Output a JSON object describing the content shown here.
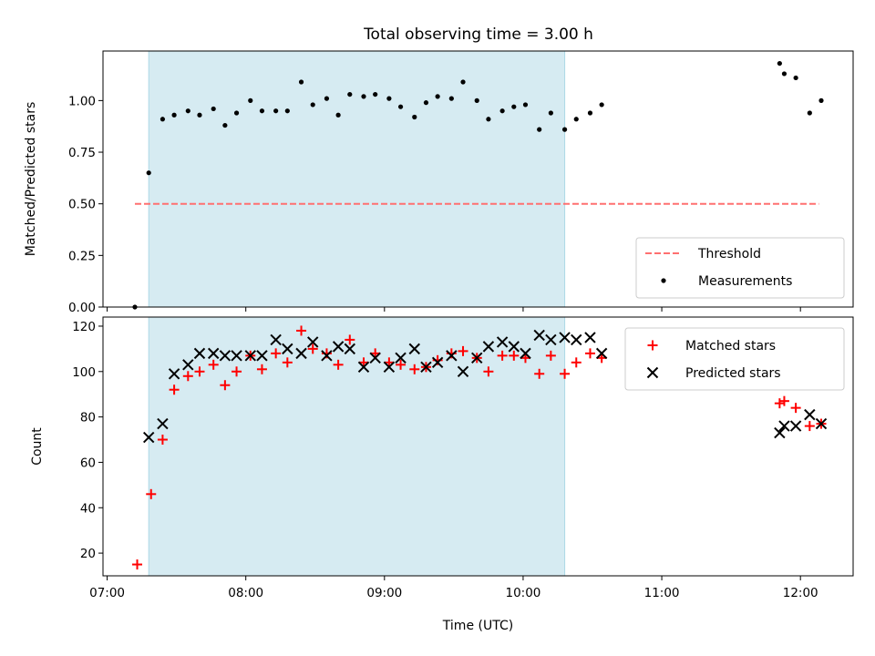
{
  "title": "Total observing time = 3.00 h",
  "colors": {
    "shade": "#add8e6",
    "threshold": "#ff7070",
    "matched": "#ff0000",
    "predicted": "#000000",
    "measurement": "#000000"
  },
  "chart_data": [
    {
      "type": "scatter",
      "panel": "top",
      "ylabel": "Matched/Predicted stars",
      "ylim": [
        0.0,
        1.24
      ],
      "yticks": [
        "0.00",
        "0.25",
        "0.50",
        "0.75",
        "1.00"
      ],
      "xlim_hours": [
        6.97,
        12.38
      ],
      "shaded_interval": [
        "07:18",
        "10:18"
      ],
      "threshold": {
        "name": "Threshold",
        "y": 0.5,
        "x_range": [
          "07:12",
          "12:08"
        ]
      },
      "legend": {
        "placement": "lower right",
        "entries": [
          "Threshold",
          "Measurements"
        ]
      },
      "series": [
        {
          "name": "Measurements",
          "points": [
            [
              "07:12",
              0.0
            ],
            [
              "07:18",
              0.65
            ],
            [
              "07:24",
              0.91
            ],
            [
              "07:29",
              0.93
            ],
            [
              "07:35",
              0.95
            ],
            [
              "07:40",
              0.93
            ],
            [
              "07:46",
              0.96
            ],
            [
              "07:51",
              0.88
            ],
            [
              "07:56",
              0.94
            ],
            [
              "08:02",
              1.0
            ],
            [
              "08:07",
              0.95
            ],
            [
              "08:13",
              0.95
            ],
            [
              "08:18",
              0.95
            ],
            [
              "08:24",
              1.09
            ],
            [
              "08:29",
              0.98
            ],
            [
              "08:35",
              1.01
            ],
            [
              "08:40",
              0.93
            ],
            [
              "08:45",
              1.03
            ],
            [
              "08:51",
              1.02
            ],
            [
              "08:56",
              1.03
            ],
            [
              "09:02",
              1.01
            ],
            [
              "09:07",
              0.97
            ],
            [
              "09:13",
              0.92
            ],
            [
              "09:18",
              0.99
            ],
            [
              "09:23",
              1.02
            ],
            [
              "09:29",
              1.01
            ],
            [
              "09:34",
              1.09
            ],
            [
              "09:40",
              1.0
            ],
            [
              "09:45",
              0.91
            ],
            [
              "09:51",
              0.95
            ],
            [
              "09:56",
              0.97
            ],
            [
              "10:01",
              0.98
            ],
            [
              "10:07",
              0.86
            ],
            [
              "10:12",
              0.94
            ],
            [
              "10:18",
              0.86
            ],
            [
              "10:23",
              0.91
            ],
            [
              "10:29",
              0.94
            ],
            [
              "10:34",
              0.98
            ],
            [
              "11:51",
              1.18
            ],
            [
              "11:53",
              1.13
            ],
            [
              "11:58",
              1.11
            ],
            [
              "12:04",
              0.94
            ],
            [
              "12:09",
              1.0
            ]
          ]
        }
      ]
    },
    {
      "type": "scatter",
      "panel": "bottom",
      "xlabel": "Time (UTC)",
      "ylabel": "Count",
      "ylim": [
        10,
        124
      ],
      "yticks": [
        "20",
        "40",
        "60",
        "80",
        "100",
        "120"
      ],
      "xticks": [
        "07:00",
        "08:00",
        "09:00",
        "10:00",
        "11:00",
        "12:00"
      ],
      "xlim_hours": [
        6.97,
        12.38
      ],
      "shaded_interval": [
        "07:18",
        "10:18"
      ],
      "legend": {
        "placement": "upper right",
        "entries": [
          "Matched stars",
          "Predicted stars"
        ]
      },
      "series": [
        {
          "name": "Matched stars",
          "marker": "plus",
          "points": [
            [
              "07:13",
              15
            ],
            [
              "07:19",
              46
            ],
            [
              "07:24",
              70
            ],
            [
              "07:29",
              92
            ],
            [
              "07:35",
              98
            ],
            [
              "07:40",
              100
            ],
            [
              "07:46",
              103
            ],
            [
              "07:51",
              94
            ],
            [
              "07:56",
              100
            ],
            [
              "08:02",
              107
            ],
            [
              "08:07",
              101
            ],
            [
              "08:13",
              108
            ],
            [
              "08:18",
              104
            ],
            [
              "08:24",
              118
            ],
            [
              "08:29",
              110
            ],
            [
              "08:35",
              108
            ],
            [
              "08:40",
              103
            ],
            [
              "08:45",
              114
            ],
            [
              "08:51",
              104
            ],
            [
              "08:56",
              108
            ],
            [
              "09:02",
              104
            ],
            [
              "09:07",
              103
            ],
            [
              "09:13",
              101
            ],
            [
              "09:18",
              102
            ],
            [
              "09:23",
              105
            ],
            [
              "09:29",
              108
            ],
            [
              "09:34",
              109
            ],
            [
              "09:40",
              106
            ],
            [
              "09:45",
              100
            ],
            [
              "09:51",
              107
            ],
            [
              "09:56",
              107
            ],
            [
              "10:01",
              106
            ],
            [
              "10:07",
              99
            ],
            [
              "10:12",
              107
            ],
            [
              "10:18",
              99
            ],
            [
              "10:23",
              104
            ],
            [
              "10:29",
              108
            ],
            [
              "10:34",
              106
            ],
            [
              "11:51",
              86
            ],
            [
              "11:53",
              87
            ],
            [
              "11:58",
              84
            ],
            [
              "12:04",
              76
            ],
            [
              "12:09",
              77
            ]
          ]
        },
        {
          "name": "Predicted stars",
          "marker": "x",
          "points": [
            [
              "07:18",
              71
            ],
            [
              "07:24",
              77
            ],
            [
              "07:29",
              99
            ],
            [
              "07:35",
              103
            ],
            [
              "07:40",
              108
            ],
            [
              "07:46",
              108
            ],
            [
              "07:51",
              107
            ],
            [
              "07:56",
              107
            ],
            [
              "08:02",
              107
            ],
            [
              "08:07",
              107
            ],
            [
              "08:13",
              114
            ],
            [
              "08:18",
              110
            ],
            [
              "08:24",
              108
            ],
            [
              "08:29",
              113
            ],
            [
              "08:35",
              107
            ],
            [
              "08:40",
              111
            ],
            [
              "08:45",
              110
            ],
            [
              "08:51",
              102
            ],
            [
              "08:56",
              106
            ],
            [
              "09:02",
              102
            ],
            [
              "09:07",
              106
            ],
            [
              "09:13",
              110
            ],
            [
              "09:18",
              102
            ],
            [
              "09:23",
              104
            ],
            [
              "09:29",
              107
            ],
            [
              "09:34",
              100
            ],
            [
              "09:40",
              106
            ],
            [
              "09:45",
              111
            ],
            [
              "09:51",
              113
            ],
            [
              "09:56",
              111
            ],
            [
              "10:01",
              108
            ],
            [
              "10:07",
              116
            ],
            [
              "10:12",
              114
            ],
            [
              "10:18",
              115
            ],
            [
              "10:23",
              114
            ],
            [
              "10:29",
              115
            ],
            [
              "10:34",
              108
            ],
            [
              "11:51",
              73
            ],
            [
              "11:53",
              76
            ],
            [
              "11:58",
              76
            ],
            [
              "12:04",
              81
            ],
            [
              "12:09",
              77
            ]
          ]
        }
      ]
    }
  ]
}
